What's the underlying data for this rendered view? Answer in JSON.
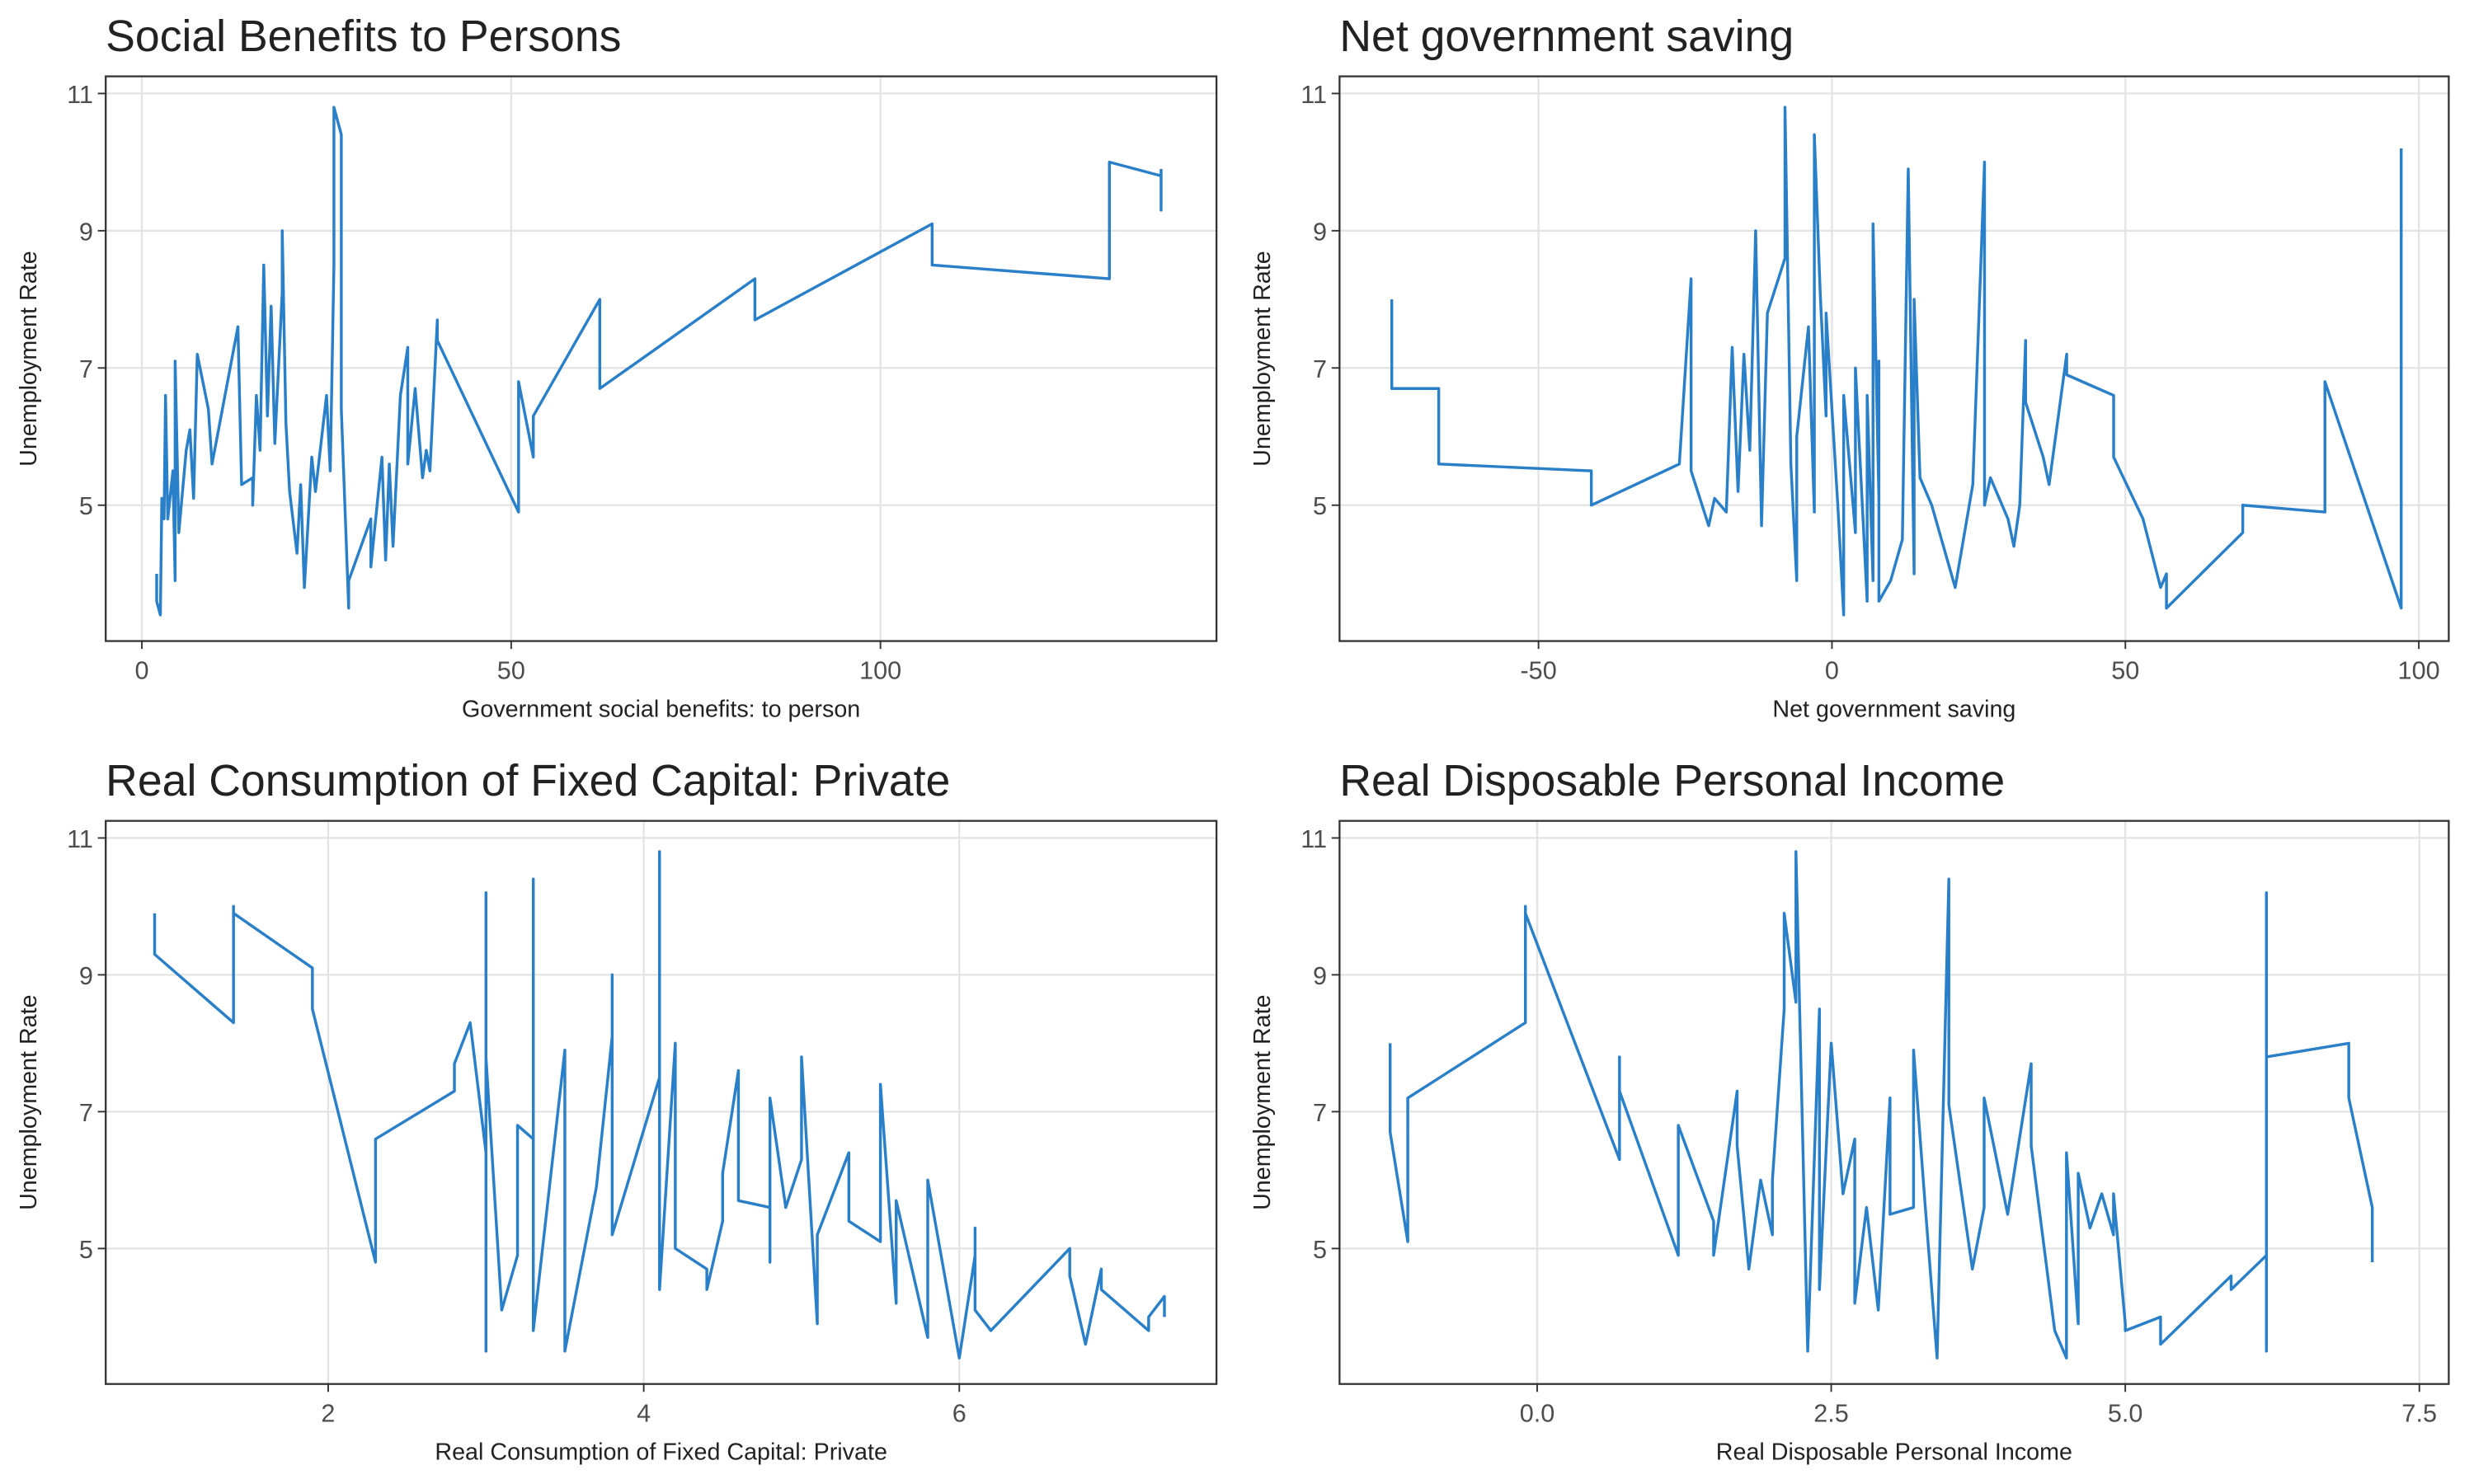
{
  "chart_data": [
    {
      "type": "line",
      "title": "Social Benefits to Persons",
      "x_label": "Government social benefits: to person",
      "y_label": "Unemployment Rate",
      "color": "#2a7fc9",
      "grid": true,
      "xlim": [
        -4.9,
        145.5
      ],
      "xticks": [
        0,
        50,
        100
      ],
      "ylim": [
        3.02,
        11.25
      ],
      "yticks": [
        5,
        7,
        9,
        11
      ],
      "x": [
        2,
        2,
        2.5,
        2.7,
        3,
        3.2,
        3.5,
        4.2,
        4.5,
        4.5,
        5,
        6,
        6.5,
        7,
        7.5,
        9,
        9.5,
        13,
        13.5,
        15,
        15,
        15.5,
        16,
        16.5,
        17,
        17.5,
        18,
        19,
        19,
        19.5,
        20,
        21,
        21.5,
        22,
        23,
        23.5,
        25,
        25.5,
        26,
        26,
        27,
        27,
        28,
        28,
        31,
        31,
        32.5,
        33,
        33.5,
        34,
        35,
        36,
        36,
        37,
        38,
        38.5,
        39,
        40,
        40,
        51,
        51,
        53,
        53,
        62,
        62,
        83,
        83,
        107,
        107,
        131,
        131,
        138,
        138,
        138
      ],
      "values": [
        4.0,
        3.6,
        3.4,
        5.1,
        4.8,
        6.6,
        4.8,
        5.5,
        3.9,
        7.1,
        4.6,
        5.8,
        6.1,
        5.1,
        7.2,
        6.4,
        5.6,
        7.6,
        5.3,
        5.4,
        5.0,
        6.6,
        5.8,
        8.5,
        6.3,
        7.9,
        5.9,
        8.1,
        9.0,
        6.2,
        5.2,
        4.3,
        5.3,
        3.8,
        5.7,
        5.2,
        6.6,
        5.5,
        8.5,
        10.8,
        10.4,
        6.4,
        3.5,
        3.9,
        4.8,
        4.1,
        5.7,
        4.2,
        5.6,
        4.4,
        6.6,
        7.3,
        5.6,
        6.7,
        5.4,
        5.8,
        5.5,
        7.7,
        7.4,
        4.9,
        6.8,
        5.7,
        6.3,
        8.0,
        6.7,
        8.3,
        7.7,
        9.1,
        8.5,
        8.3,
        10.0,
        9.8,
        9.3,
        9.9
      ]
    },
    {
      "type": "line",
      "title": "Net government saving",
      "x_label": "Net government saving",
      "y_label": "Unemployment Rate",
      "color": "#2a7fc9",
      "grid": true,
      "xlim": [
        -83.9,
        105.1
      ],
      "xticks": [
        -50,
        0,
        50,
        100
      ],
      "ylim": [
        3.02,
        11.25
      ],
      "yticks": [
        5,
        7,
        9,
        11
      ],
      "x": [
        -75,
        -75,
        -67,
        -67,
        -41,
        -41,
        -26,
        -24,
        -24,
        -21,
        -20,
        -18,
        -17,
        -16,
        -15,
        -14,
        -13,
        -12,
        -11,
        -8,
        -8,
        -7,
        -6,
        -6,
        -4,
        -3,
        -3,
        -2,
        -1,
        -1,
        1,
        2,
        2,
        4,
        4,
        6,
        6,
        7,
        7,
        8,
        8,
        8,
        10,
        12,
        13,
        14,
        14,
        15,
        17,
        21,
        24,
        26,
        26,
        27,
        30,
        31,
        32,
        33,
        33,
        36,
        37,
        40,
        40,
        48,
        48,
        53,
        56,
        57,
        57,
        70,
        70,
        84,
        84,
        97,
        97
      ],
      "values": [
        8.0,
        6.7,
        6.7,
        5.6,
        5.5,
        5.0,
        5.6,
        8.3,
        5.5,
        4.7,
        5.1,
        4.9,
        7.3,
        5.2,
        7.2,
        5.8,
        9.0,
        4.7,
        7.8,
        8.6,
        10.8,
        5.6,
        3.9,
        6.0,
        7.6,
        4.9,
        10.4,
        8.1,
        6.3,
        7.8,
        5.0,
        3.4,
        6.6,
        4.6,
        7.0,
        3.6,
        6.6,
        3.9,
        9.1,
        5.1,
        7.1,
        3.6,
        3.9,
        4.5,
        9.9,
        4.0,
        8.0,
        5.4,
        5.0,
        3.8,
        5.3,
        10.0,
        5.0,
        5.4,
        4.8,
        4.4,
        5.0,
        7.4,
        6.5,
        5.7,
        5.3,
        7.2,
        6.9,
        6.6,
        5.7,
        4.8,
        3.8,
        4.0,
        3.5,
        4.6,
        5.0,
        4.9,
        6.8,
        3.5,
        10.2
      ]
    },
    {
      "type": "line",
      "title": "Real Consumption of Fixed Capital: Private",
      "x_label": "Real Consumption of Fixed Capital: Private",
      "y_label": "Unemployment Rate",
      "color": "#2a7fc9",
      "grid": true,
      "xlim": [
        0.59,
        7.63
      ],
      "xticks": [
        2,
        4,
        6
      ],
      "ylim": [
        3.02,
        11.25
      ],
      "yticks": [
        5,
        7,
        9,
        11
      ],
      "x": [
        0.9,
        0.9,
        1.4,
        1.4,
        1.4,
        1.9,
        1.9,
        2.3,
        2.3,
        2.8,
        2.8,
        2.9,
        3.0,
        3.0,
        3.0,
        3.0,
        3.1,
        3.2,
        3.2,
        3.3,
        3.3,
        3.3,
        3.5,
        3.5,
        3.7,
        3.8,
        3.8,
        3.8,
        4.1,
        4.1,
        4.1,
        4.2,
        4.2,
        4.4,
        4.4,
        4.5,
        4.5,
        4.6,
        4.6,
        4.8,
        4.8,
        4.8,
        4.9,
        5.0,
        5.0,
        5.1,
        5.1,
        5.3,
        5.3,
        5.5,
        5.5,
        5.6,
        5.6,
        5.8,
        5.8,
        6.0,
        6.1,
        6.1,
        6.1,
        6.2,
        6.7,
        6.7,
        6.8,
        6.9,
        6.9,
        7.2,
        7.2,
        7.3,
        7.3
      ],
      "values": [
        9.9,
        9.3,
        8.3,
        10.0,
        9.9,
        9.1,
        8.5,
        4.8,
        6.6,
        7.3,
        7.7,
        8.3,
        6.4,
        10.2,
        3.5,
        7.8,
        4.1,
        4.9,
        6.8,
        6.6,
        10.4,
        3.8,
        7.9,
        3.5,
        5.9,
        8.1,
        9.0,
        5.2,
        7.5,
        10.8,
        4.4,
        8.0,
        5.0,
        4.7,
        4.4,
        5.4,
        6.1,
        7.6,
        5.7,
        5.6,
        4.8,
        7.2,
        5.6,
        6.3,
        7.8,
        3.9,
        5.2,
        6.4,
        5.4,
        5.1,
        7.4,
        4.2,
        5.7,
        3.7,
        6.0,
        3.4,
        4.9,
        5.3,
        4.1,
        3.8,
        5.0,
        4.6,
        3.6,
        4.7,
        4.4,
        3.8,
        4.0,
        4.3,
        4.0
      ]
    },
    {
      "type": "line",
      "title": "Real Disposable Personal Income",
      "x_label": "Real Disposable Personal Income",
      "y_label": "Unemployment Rate",
      "color": "#2a7fc9",
      "grid": true,
      "xlim": [
        -1.68,
        7.75
      ],
      "xticks": [
        {
          "value": 0,
          "label": "0.0"
        },
        {
          "value": 2.5,
          "label": "2.5"
        },
        {
          "value": 5,
          "label": "5.0"
        },
        {
          "value": 7.5,
          "label": "7.5"
        }
      ],
      "ylim": [
        3.02,
        11.25
      ],
      "yticks": [
        5,
        7,
        9,
        11
      ],
      "x": [
        -1.25,
        -1.25,
        -1.1,
        -1.1,
        -0.1,
        -0.1,
        -0.1,
        0.7,
        0.7,
        0.7,
        1.2,
        1.2,
        1.5,
        1.5,
        1.7,
        1.7,
        1.8,
        1.9,
        2.0,
        2.0,
        2.1,
        2.1,
        2.2,
        2.2,
        2.3,
        2.4,
        2.4,
        2.5,
        2.6,
        2.7,
        2.7,
        2.8,
        2.9,
        3.0,
        3.0,
        3.2,
        3.2,
        3.3,
        3.4,
        3.5,
        3.5,
        3.7,
        3.8,
        3.8,
        4.0,
        4.2,
        4.2,
        4.4,
        4.5,
        4.5,
        4.6,
        4.6,
        4.7,
        4.8,
        4.9,
        4.9,
        5.0,
        5.0,
        5.3,
        5.3,
        5.9,
        5.9,
        6.2,
        6.2,
        6.2,
        6.2,
        6.9,
        6.9,
        7.1,
        7.1
      ],
      "values": [
        8.0,
        6.7,
        5.1,
        7.2,
        8.3,
        10.0,
        9.9,
        6.3,
        7.8,
        7.3,
        4.9,
        6.8,
        5.4,
        4.9,
        7.3,
        6.5,
        4.7,
        6.0,
        5.2,
        6.0,
        8.5,
        9.9,
        8.6,
        10.8,
        3.5,
        8.5,
        4.4,
        8.0,
        5.8,
        6.6,
        4.2,
        5.6,
        4.1,
        7.2,
        5.5,
        5.6,
        7.9,
        5.6,
        3.4,
        10.4,
        7.1,
        4.7,
        5.6,
        7.2,
        5.5,
        7.7,
        6.5,
        3.8,
        3.4,
        6.4,
        3.9,
        6.1,
        5.3,
        5.8,
        5.2,
        5.8,
        3.9,
        3.8,
        4.0,
        3.6,
        4.6,
        4.4,
        4.9,
        3.5,
        10.2,
        7.8,
        8.0,
        7.2,
        5.6,
        4.8
      ]
    }
  ]
}
